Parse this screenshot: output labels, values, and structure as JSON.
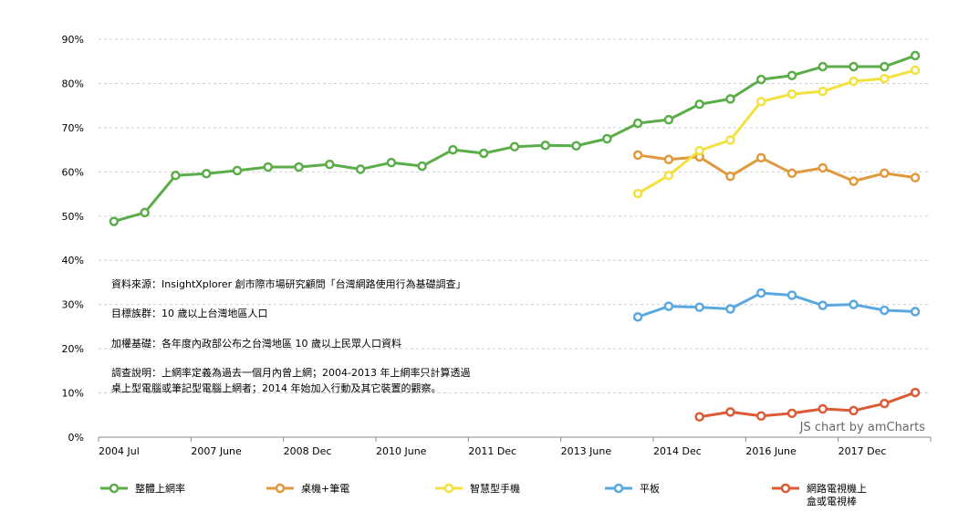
{
  "chart_data": {
    "type": "line",
    "y_ticks": [
      "0%",
      "10%",
      "20%",
      "30%",
      "40%",
      "50%",
      "60%",
      "70%",
      "80%",
      "90%"
    ],
    "ylim": [
      0,
      90
    ],
    "x_labels": [
      "2004 Jul",
      "2007 June",
      "2008 Dec",
      "2010 June",
      "2011 Dec",
      "2013 June",
      "2014 Dec",
      "2016 June",
      "2017 Dec"
    ],
    "x_label_index": [
      0,
      3,
      6,
      9,
      12,
      15,
      18,
      21,
      24
    ],
    "point_count": 27,
    "grid": true,
    "legend_position": "bottom",
    "series": [
      {
        "name": "整體上網率",
        "color": "#5aad48",
        "start": 0,
        "values": [
          48.8,
          50.8,
          59.2,
          59.6,
          60.3,
          61.1,
          61.1,
          61.7,
          60.6,
          62.1,
          61.3,
          65.0,
          64.2,
          65.7,
          66.0,
          65.9,
          67.5,
          71.0,
          71.8,
          75.3,
          76.5,
          80.9,
          81.8,
          83.8,
          83.8,
          83.8,
          86.3
        ]
      },
      {
        "name": "桌機+筆電",
        "color": "#e09a3c",
        "start": 17,
        "values": [
          63.8,
          62.8,
          63.4,
          59.0,
          63.2,
          59.7,
          60.9,
          57.9,
          59.7,
          58.7
        ]
      },
      {
        "name": "智慧型手機",
        "color": "#f2e13e",
        "start": 17,
        "values": [
          55.1,
          59.2,
          64.8,
          67.2,
          75.9,
          77.6,
          78.2,
          80.5,
          81.1,
          83.0
        ]
      },
      {
        "name": "平板",
        "color": "#5aa8e0",
        "start": 17,
        "values": [
          27.2,
          29.6,
          29.4,
          29.0,
          32.6,
          32.1,
          29.8,
          30.0,
          28.7,
          28.4
        ]
      },
      {
        "name": "網路電視機上盒或電視棒",
        "legend_lines": [
          "網路電視機上",
          "盒或電視棒"
        ],
        "color": "#dc5b36",
        "start": 19,
        "values": [
          4.6,
          5.7,
          4.8,
          5.4,
          6.4,
          6.0,
          7.6,
          10.1
        ]
      }
    ],
    "annotations": [
      "資料來源：InsightXplorer 創市際市場研究顧問「台灣網路使用行為基礎調查」",
      "目標族群：10 歲以上台灣地區人口",
      "加權基礎：各年度內政部公布之台灣地區 10 歲以上民眾人口資料",
      "調查說明：上網率定義為過去一個月內曾上網；2004-2013 年上網率只計算透過",
      "桌上型電腦或筆記型電腦上網者；2014 年始加入行動及其它裝置的觀察。"
    ]
  },
  "credit": "JS chart by amCharts"
}
